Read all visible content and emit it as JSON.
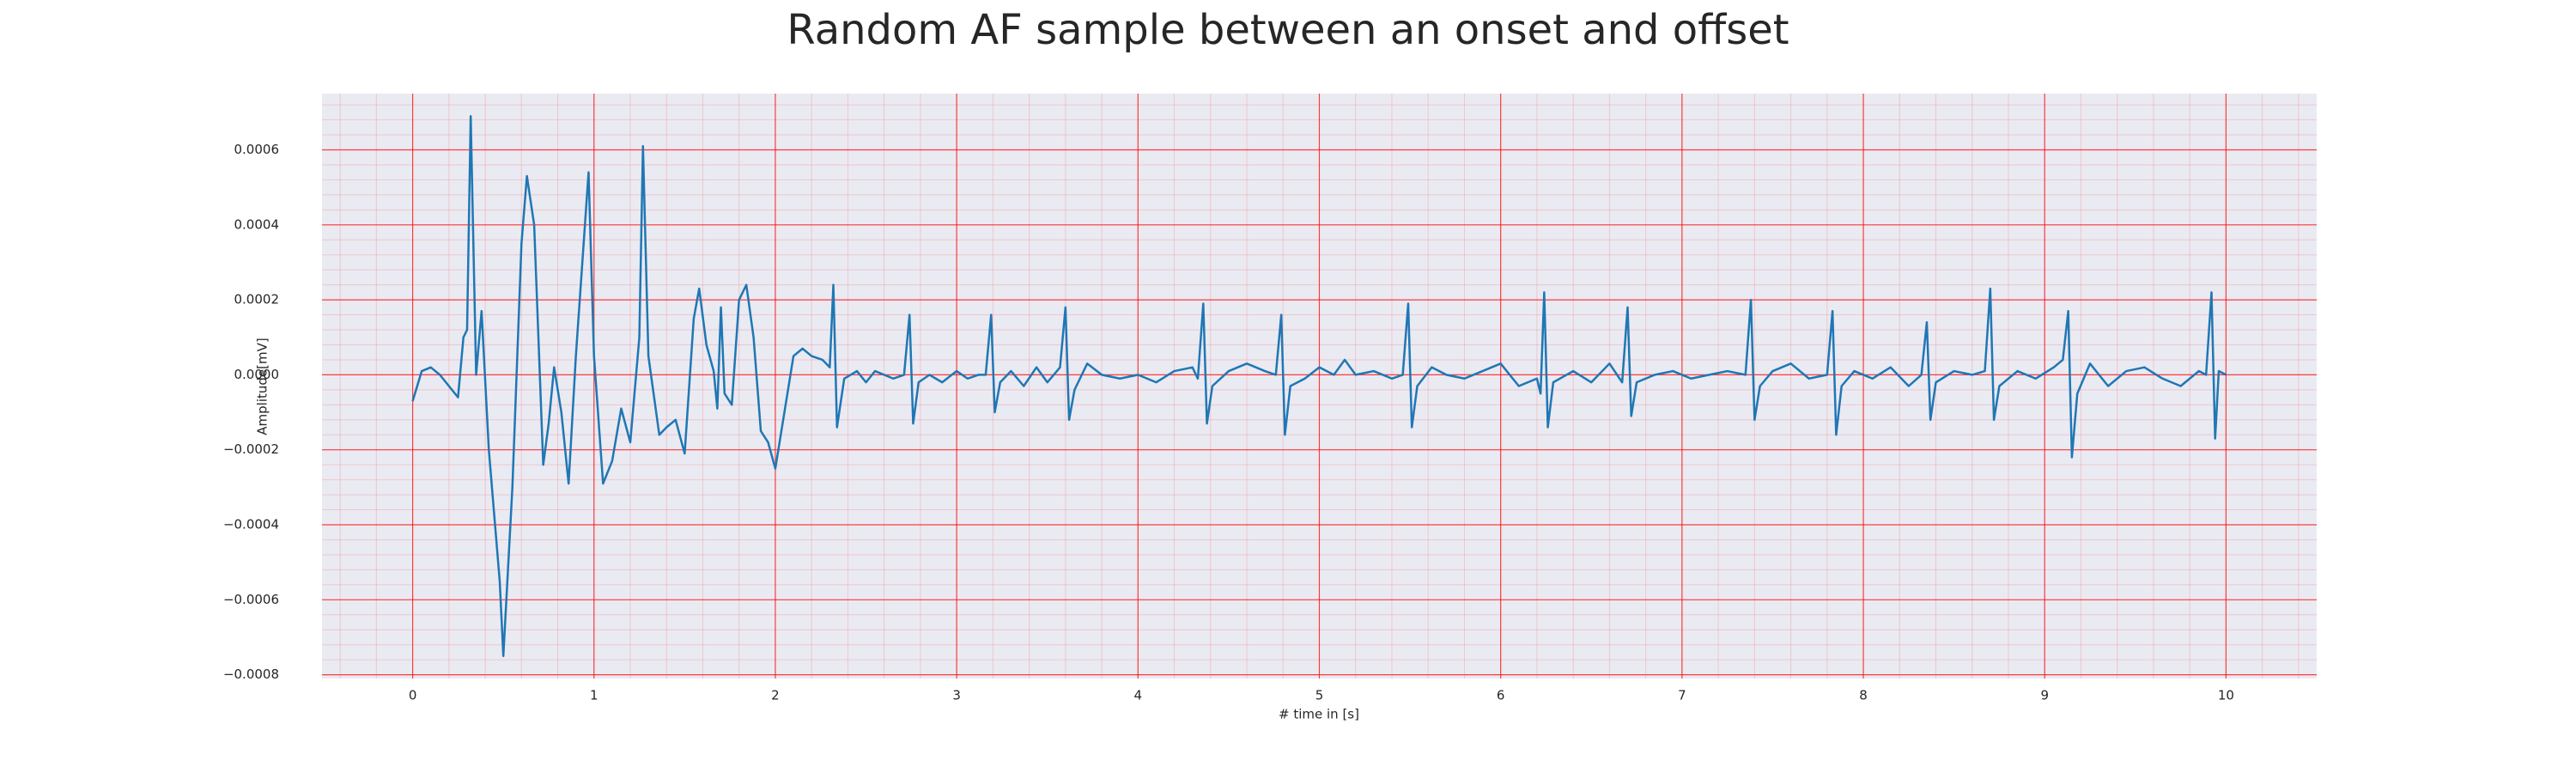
{
  "chart_data": {
    "type": "line",
    "title": "Random AF sample between an onset and offset",
    "xlabel": "# time in [s]",
    "ylabel": "Amplitude[mV]",
    "xlim": [
      -0.5,
      10.5
    ],
    "ylim": [
      -0.00081,
      0.00075
    ],
    "xticks": [
      0,
      1,
      2,
      3,
      4,
      5,
      6,
      7,
      8,
      9,
      10
    ],
    "yticks": [
      {
        "value": -0.0008,
        "label": "−0.0008"
      },
      {
        "value": -0.0006,
        "label": "−0.0006"
      },
      {
        "value": -0.0004,
        "label": "−0.0004"
      },
      {
        "value": -0.0002,
        "label": "−0.0002"
      },
      {
        "value": 0,
        "label": "0.0000"
      },
      0.0002,
      0.0004,
      0.0006
    ],
    "grid": true,
    "grid_color": "#ff0000",
    "minor_grid": true,
    "minor_grid_divisions": 5,
    "background": "#eaeaf2",
    "series": [
      {
        "color": "#1f77b4",
        "x": [
          0,
          0.05,
          0.1,
          0.15,
          0.2,
          0.25,
          0.28,
          0.3,
          0.32,
          0.35,
          0.38,
          0.42,
          0.48,
          0.5,
          0.55,
          0.6,
          0.63,
          0.67,
          0.72,
          0.75,
          0.78,
          0.82,
          0.86,
          0.9,
          0.95,
          0.97,
          1.0,
          1.05,
          1.1,
          1.15,
          1.2,
          1.25,
          1.27,
          1.3,
          1.36,
          1.4,
          1.45,
          1.5,
          1.55,
          1.58,
          1.62,
          1.66,
          1.68,
          1.7,
          1.72,
          1.76,
          1.8,
          1.84,
          1.88,
          1.92,
          1.96,
          2.0,
          2.05,
          2.1,
          2.15,
          2.2,
          2.26,
          2.3,
          2.32,
          2.34,
          2.38,
          2.45,
          2.5,
          2.55,
          2.6,
          2.65,
          2.71,
          2.74,
          2.76,
          2.79,
          2.85,
          2.92,
          3.0,
          3.06,
          3.12,
          3.16,
          3.19,
          3.21,
          3.24,
          3.3,
          3.37,
          3.44,
          3.5,
          3.57,
          3.6,
          3.62,
          3.65,
          3.72,
          3.8,
          3.9,
          4.0,
          4.1,
          4.2,
          4.3,
          4.33,
          4.36,
          4.38,
          4.41,
          4.5,
          4.6,
          4.7,
          4.76,
          4.79,
          4.81,
          4.84,
          4.92,
          5.0,
          5.08,
          5.14,
          5.2,
          5.3,
          5.4,
          5.46,
          5.49,
          5.51,
          5.54,
          5.62,
          5.7,
          5.8,
          5.9,
          6.0,
          6.1,
          6.2,
          6.22,
          6.24,
          6.26,
          6.29,
          6.4,
          6.5,
          6.6,
          6.67,
          6.7,
          6.72,
          6.75,
          6.85,
          6.95,
          7.05,
          7.15,
          7.25,
          7.35,
          7.38,
          7.4,
          7.43,
          7.5,
          7.6,
          7.7,
          7.8,
          7.83,
          7.85,
          7.88,
          7.95,
          8.05,
          8.15,
          8.25,
          8.32,
          8.35,
          8.37,
          8.4,
          8.5,
          8.6,
          8.67,
          8.7,
          8.72,
          8.75,
          8.85,
          8.95,
          9.05,
          9.1,
          9.13,
          9.15,
          9.18,
          9.25,
          9.35,
          9.45,
          9.55,
          9.65,
          9.75,
          9.85,
          9.89,
          9.92,
          9.94,
          9.96,
          10.0
        ],
        "values": [
          -7e-05,
          1e-05,
          2e-05,
          0,
          -3e-05,
          -6e-05,
          0.0001,
          0.00012,
          0.00069,
          0,
          0.00017,
          -0.0002,
          -0.00055,
          -0.00075,
          -0.0003,
          0.00035,
          0.00053,
          0.0004,
          -0.00024,
          -0.00013,
          2e-05,
          -0.0001,
          -0.00029,
          5e-05,
          0.0004,
          0.00054,
          5e-05,
          -0.00029,
          -0.00023,
          -9e-05,
          -0.00018,
          0.0001,
          0.00061,
          5e-05,
          -0.00016,
          -0.00014,
          -0.00012,
          -0.00021,
          0.00015,
          0.00023,
          8e-05,
          1e-05,
          -9e-05,
          0.00018,
          -5e-05,
          -8e-05,
          0.0002,
          0.00024,
          0.0001,
          -0.00015,
          -0.00018,
          -0.00025,
          -0.0001,
          5e-05,
          7e-05,
          5e-05,
          4e-05,
          2e-05,
          0.00024,
          -0.00014,
          -1e-05,
          1e-05,
          -2e-05,
          1e-05,
          0,
          -1e-05,
          0,
          0.00016,
          -0.00013,
          -2e-05,
          0,
          -2e-05,
          1e-05,
          -1e-05,
          0,
          0,
          0.00016,
          -0.0001,
          -2e-05,
          1e-05,
          -3e-05,
          2e-05,
          -2e-05,
          2e-05,
          0.00018,
          -0.00012,
          -4e-05,
          3e-05,
          0,
          -1e-05,
          0,
          -2e-05,
          1e-05,
          2e-05,
          -1e-05,
          0.00019,
          -0.00013,
          -3e-05,
          1e-05,
          3e-05,
          1e-05,
          0,
          0.00016,
          -0.00016,
          -3e-05,
          -1e-05,
          2e-05,
          0,
          4e-05,
          0,
          1e-05,
          -1e-05,
          0,
          0.00019,
          -0.00014,
          -3e-05,
          2e-05,
          0,
          -1e-05,
          1e-05,
          3e-05,
          -3e-05,
          -1e-05,
          -5e-05,
          0.00022,
          -0.00014,
          -2e-05,
          1e-05,
          -2e-05,
          3e-05,
          -2e-05,
          0.00018,
          -0.00011,
          -2e-05,
          0,
          1e-05,
          -1e-05,
          0,
          1e-05,
          0,
          0.0002,
          -0.00012,
          -3e-05,
          1e-05,
          3e-05,
          -1e-05,
          0,
          0.00017,
          -0.00016,
          -3e-05,
          1e-05,
          -1e-05,
          2e-05,
          -3e-05,
          0,
          0.00014,
          -0.00012,
          -2e-05,
          1e-05,
          0,
          1e-05,
          0.00023,
          -0.00012,
          -3e-05,
          1e-05,
          -1e-05,
          2e-05,
          4e-05,
          0.00017,
          -0.00022,
          -5e-05,
          3e-05,
          -3e-05,
          1e-05,
          2e-05,
          -1e-05,
          -3e-05,
          1e-05,
          0,
          0.00022,
          -0.00017,
          1e-05,
          0
        ]
      }
    ]
  }
}
